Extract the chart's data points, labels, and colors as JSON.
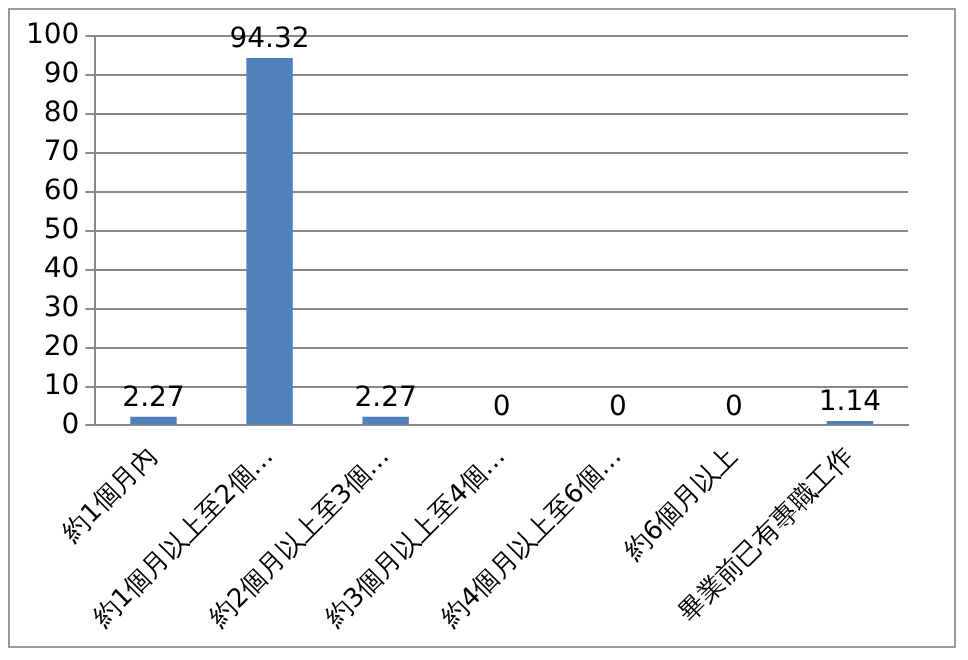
{
  "chart_data": {
    "type": "bar",
    "categories": [
      "約1個月內",
      "約1個月以上至2個…",
      "約2個月以上至3個…",
      "約3個月以上至4個…",
      "約4個月以上至6個…",
      "約6個月以上",
      "畢業前已有專職工作"
    ],
    "values": [
      2.27,
      94.32,
      2.27,
      0,
      0,
      0,
      1.14
    ],
    "color": "#4f81bd",
    "ylim": [
      0,
      100
    ],
    "yticks": [
      0,
      10,
      20,
      30,
      40,
      50,
      60,
      70,
      80,
      90,
      100
    ],
    "grid": "y",
    "data_labels": true
  }
}
